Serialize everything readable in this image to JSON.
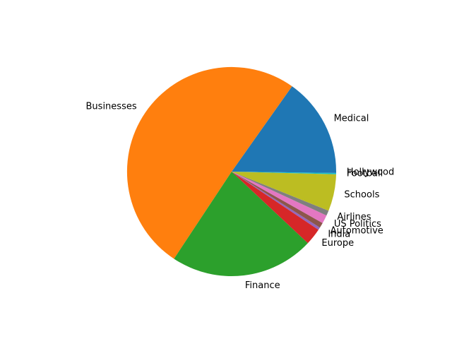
{
  "chart_data": {
    "type": "pie",
    "title": "",
    "start_angle_deg": 0,
    "counterclock": true,
    "slices": [
      {
        "label": "Medical",
        "value": 15.2,
        "color": "#1f77b4"
      },
      {
        "label": "Businesses",
        "value": 50.5,
        "color": "#ff7f0e"
      },
      {
        "label": "Finance",
        "value": 22.3,
        "color": "#2ca02c"
      },
      {
        "label": "Europe",
        "value": 2.6,
        "color": "#d62728"
      },
      {
        "label": "India",
        "value": 0.4,
        "color": "#9467bd"
      },
      {
        "label": "Automotive",
        "value": 0.8,
        "color": "#8c564b"
      },
      {
        "label": "US Politics",
        "value": 1.3,
        "color": "#e377c2"
      },
      {
        "label": "Airlines",
        "value": 0.8,
        "color": "#7f7f7f"
      },
      {
        "label": "Schools",
        "value": 5.7,
        "color": "#bcbd22"
      },
      {
        "label": "Football",
        "value": 0.2,
        "color": "#17becf"
      },
      {
        "label": "Hollywood",
        "value": 0.2,
        "color": "#1f77b4"
      }
    ]
  }
}
